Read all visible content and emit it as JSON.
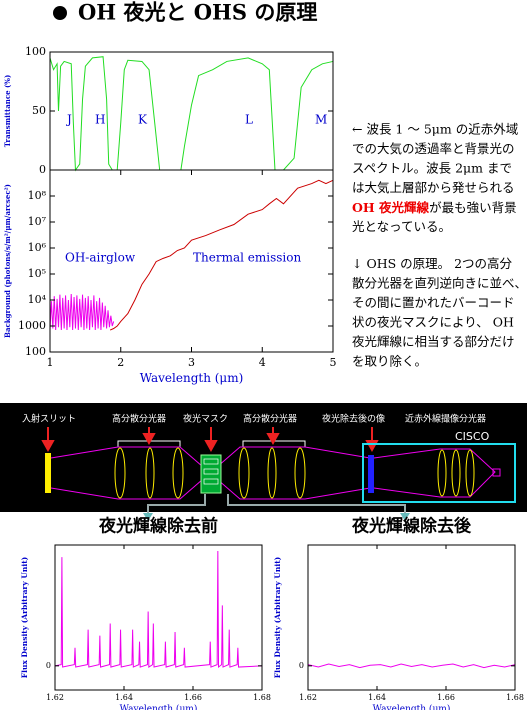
{
  "title": "OH 夜光と OHS の原理",
  "description": {
    "lines_before": [
      "← 波長 1 ～ 5μm の近赤外域",
      "での大気の透過率と背景光の",
      "スペクトル。波長 2μm まで",
      "は大気上層部から発せられる"
    ],
    "highlight": "OH 夜光輝線",
    "highlight_tail": "が最も強い背景",
    "lines_after": [
      "光となっている。"
    ],
    "principle": [
      "↓ OHS の原理。 2つの高分",
      "散分光器を直列逆向きに並べ、",
      "その間に置かれたバーコード",
      "状の夜光マスクにより、 OH",
      "夜光輝線に相当する部分だけ",
      "を取り除く。"
    ]
  },
  "diagram": {
    "labels": [
      "入射スリット",
      "高分散分光器",
      "夜光マスク",
      "高分散分光器",
      "夜光除去後の像",
      "近赤外線撮像分光器"
    ],
    "instrument": "CISCO"
  },
  "chart_data": [
    {
      "type": "line",
      "y_label": "Transmittance (%)",
      "annotations": [
        "J",
        "H",
        "K",
        "L",
        "M"
      ],
      "xlim": [
        1,
        5
      ],
      "ylim": [
        0,
        100
      ],
      "yticks": [
        0,
        50,
        100
      ],
      "series": [
        {
          "color": "#22dd22",
          "x": [
            1.0,
            1.05,
            1.1,
            1.12,
            1.15,
            1.2,
            1.3,
            1.33,
            1.36,
            1.42,
            1.46,
            1.5,
            1.6,
            1.75,
            1.8,
            1.83,
            1.88,
            1.95,
            2.0,
            2.05,
            2.1,
            2.3,
            2.4,
            2.48,
            2.55,
            2.7,
            2.85,
            2.9,
            3.0,
            3.1,
            3.3,
            3.5,
            3.8,
            4.0,
            4.1,
            4.18,
            4.3,
            4.45,
            4.55,
            4.7,
            4.85,
            5.0
          ],
          "values": [
            95,
            85,
            90,
            50,
            88,
            92,
            90,
            40,
            0,
            5,
            60,
            88,
            95,
            96,
            60,
            5,
            0,
            0,
            40,
            85,
            93,
            92,
            85,
            40,
            0,
            0,
            0,
            20,
            55,
            80,
            85,
            92,
            95,
            90,
            85,
            0,
            0,
            10,
            70,
            85,
            90,
            92
          ]
        }
      ]
    },
    {
      "type": "line",
      "log_y": true,
      "y_label": "Background (photons/s/m²/μm/arcsec²)",
      "x_label": "Wavelength (μm)",
      "annotations": [
        "OH-airglow",
        "Thermal emission"
      ],
      "xlim": [
        1,
        5
      ],
      "xticks": [
        1,
        2,
        3,
        4,
        5
      ],
      "ylim": [
        100,
        1000000000
      ],
      "yticks": [
        100,
        1000,
        {
          "value": 10000,
          "label": "10⁴"
        },
        {
          "value": 100000,
          "label": "10⁵"
        },
        {
          "value": 1000000,
          "label": "10⁶"
        },
        {
          "value": 10000000,
          "label": "10⁷"
        },
        {
          "value": 100000000,
          "label": "10⁸"
        }
      ],
      "series": [
        {
          "color": "#ee00ee",
          "x": [
            1.0,
            1.02,
            1.04,
            1.06,
            1.08,
            1.1,
            1.12,
            1.14,
            1.16,
            1.18,
            1.2,
            1.22,
            1.24,
            1.26,
            1.28,
            1.3,
            1.32,
            1.34,
            1.36,
            1.38,
            1.4,
            1.42,
            1.44,
            1.46,
            1.48,
            1.5,
            1.52,
            1.54,
            1.56,
            1.58,
            1.6,
            1.62,
            1.64,
            1.66,
            1.68,
            1.7,
            1.72,
            1.74,
            1.76,
            1.78,
            1.8,
            1.82,
            1.84,
            1.86,
            1.88,
            1.9
          ],
          "values": [
            700,
            9000,
            800,
            14000,
            700,
            11000,
            900,
            16000,
            700,
            12000,
            800,
            15000,
            700,
            10000,
            900,
            17000,
            700,
            13000,
            800,
            15000,
            700,
            11000,
            900,
            16000,
            700,
            12000,
            800,
            14000,
            700,
            10000,
            900,
            15000,
            700,
            9000,
            800,
            12000,
            700,
            8000,
            900,
            6000,
            800,
            4000,
            900,
            2500,
            1000,
            1500
          ]
        },
        {
          "color": "#cc0000",
          "x": [
            1.85,
            1.9,
            1.95,
            2.0,
            2.1,
            2.2,
            2.3,
            2.4,
            2.5,
            2.6,
            2.7,
            2.8,
            2.9,
            3.0,
            3.2,
            3.4,
            3.6,
            3.8,
            4.0,
            4.1,
            4.2,
            4.3,
            4.5,
            4.7,
            4.8,
            4.9,
            5.0
          ],
          "values": [
            700,
            800,
            1000,
            1500,
            3000,
            10000,
            40000,
            100000,
            300000,
            400000,
            500000,
            800000,
            1000000,
            2000000,
            3000000,
            5000000,
            8000000,
            20000000,
            30000000,
            50000000,
            80000000,
            50000000,
            200000000,
            300000000,
            400000000,
            300000000,
            400000000
          ]
        }
      ]
    },
    {
      "type": "line",
      "title": "夜光輝線除去前",
      "y_label": "Flux Density (Arbitrary Unit)",
      "x_label": "Wavelength (μm)",
      "xlim": [
        1.62,
        1.68
      ],
      "xticks": [
        1.62,
        1.64,
        1.66,
        1.68
      ],
      "ylim": [
        -0.2,
        1
      ],
      "yticks": [
        0
      ],
      "series": [
        {
          "color": "#ee00ee",
          "x": [
            1.62,
            1.6218,
            1.622,
            1.6222,
            1.6256,
            1.6258,
            1.626,
            1.6294,
            1.6296,
            1.6298,
            1.6328,
            1.633,
            1.6332,
            1.6358,
            1.636,
            1.6362,
            1.6388,
            1.639,
            1.6392,
            1.6423,
            1.6425,
            1.6427,
            1.6443,
            1.6445,
            1.6447,
            1.6468,
            1.647,
            1.6472,
            1.6483,
            1.6485,
            1.6487,
            1.6518,
            1.652,
            1.6522,
            1.6546,
            1.6548,
            1.655,
            1.6573,
            1.6575,
            1.6577,
            1.6648,
            1.665,
            1.6652,
            1.667,
            1.6672,
            1.6674,
            1.6683,
            1.6685,
            1.6687,
            1.6703,
            1.6705,
            1.6707,
            1.6728,
            1.673,
            1.6732,
            1.68
          ],
          "values": [
            0,
            0.01,
            0.9,
            -0.01,
            0.01,
            0.15,
            -0.01,
            0.01,
            0.3,
            -0.01,
            0.01,
            0.25,
            -0.01,
            0.01,
            0.35,
            -0.01,
            0.01,
            0.3,
            -0.01,
            0.01,
            0.3,
            -0.01,
            0.01,
            0.2,
            -0.01,
            0.01,
            0.45,
            -0.01,
            0.01,
            0.35,
            -0.01,
            0.01,
            0.2,
            -0.01,
            0.01,
            0.28,
            -0.01,
            0.01,
            0.15,
            -0.01,
            0.01,
            0.2,
            -0.01,
            0.01,
            0.95,
            -0.01,
            0.01,
            0.5,
            -0.01,
            0.01,
            0.3,
            -0.01,
            0.01,
            0.15,
            -0.01,
            0
          ]
        }
      ]
    },
    {
      "type": "line",
      "title": "夜光輝線除去後",
      "y_label": "Flux Density (Arbitrary Unit)",
      "x_label": "Wavelength (μm)",
      "xlim": [
        1.62,
        1.68
      ],
      "xticks": [
        1.62,
        1.64,
        1.66,
        1.68
      ],
      "ylim": [
        -0.2,
        1
      ],
      "yticks": [
        0
      ],
      "series": [
        {
          "color": "#ee00ee",
          "x": [
            1.62,
            1.623,
            1.626,
            1.629,
            1.632,
            1.635,
            1.638,
            1.641,
            1.644,
            1.647,
            1.65,
            1.653,
            1.656,
            1.659,
            1.662,
            1.665,
            1.668,
            1.671,
            1.674,
            1.677,
            1.68
          ],
          "values": [
            0.01,
            -0.01,
            0.015,
            -0.005,
            0.01,
            -0.015,
            0.005,
            0.01,
            -0.01,
            0.015,
            -0.005,
            0.01,
            -0.01,
            0.005,
            0.015,
            -0.01,
            0.01,
            -0.015,
            0.005,
            -0.01,
            0.01
          ]
        }
      ]
    }
  ]
}
